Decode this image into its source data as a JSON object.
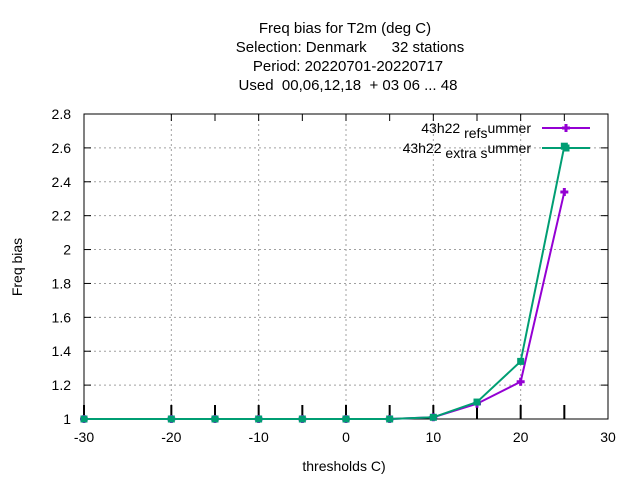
{
  "chart_data": {
    "type": "line",
    "title_lines": [
      "Freq bias  for T2m (deg C)",
      "Selection: Denmark      32 stations",
      "Period: 20220701-20220717",
      "Used  00,06,12,18  + 03 06 ... 48"
    ],
    "xlabel": "thresholds C)",
    "ylabel": "Freq bias",
    "xlim": [
      -30,
      30
    ],
    "ylim": [
      1,
      2.8
    ],
    "xticks": [
      -30,
      -20,
      -10,
      0,
      10,
      20,
      30
    ],
    "yticks": [
      1,
      1.2,
      1.4,
      1.6,
      1.8,
      2,
      2.2,
      2.4,
      2.6,
      2.8
    ],
    "grid": true,
    "legend_position": "top-right",
    "x": [
      -30,
      -20,
      -15,
      -10,
      -5,
      0,
      5,
      10,
      15,
      20,
      25
    ],
    "series": [
      {
        "name": "43h22 _ref_summer",
        "legend_parts": [
          "43h22 ",
          "ref",
          "",
          "s",
          "ummer"
        ],
        "color": "#9400d3",
        "values": [
          1.0,
          1.0,
          1.0,
          1.0,
          1.0,
          1.0,
          1.0,
          1.01,
          1.09,
          1.22,
          2.34
        ]
      },
      {
        "name": "43h22 _extra_summer",
        "legend_parts": [
          "43h22 ",
          "e",
          "xtra ",
          "s",
          "ummer"
        ],
        "color": "#009e73",
        "values": [
          1.0,
          1.0,
          1.0,
          1.0,
          1.0,
          1.0,
          1.0,
          1.01,
          1.1,
          1.34,
          2.61
        ]
      }
    ]
  }
}
